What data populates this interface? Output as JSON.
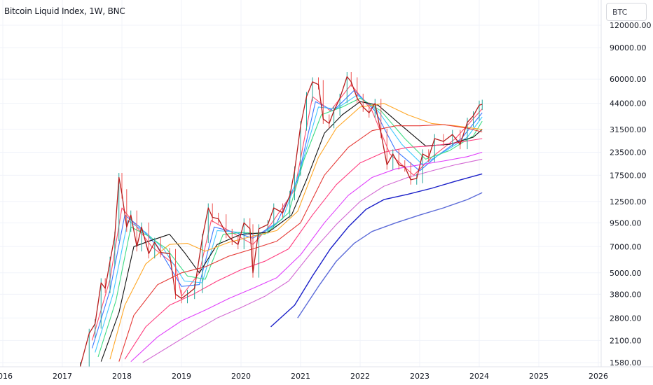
{
  "header": {
    "title": "Bitcoin Liquid Index, 1W, BNC"
  },
  "symbol_search": {
    "value": "BTC"
  },
  "chart_data": {
    "type": "line",
    "title": "Bitcoin Liquid Index, 1W, BNC",
    "y_scale": "log",
    "y_ticks": [
      {
        "label": "120000.00",
        "value": 120000
      },
      {
        "label": "90000.00",
        "value": 90000
      },
      {
        "label": "60000.00",
        "value": 60000
      },
      {
        "label": "44000.00",
        "value": 44000
      },
      {
        "label": "31500.00",
        "value": 31500
      },
      {
        "label": "23500.00",
        "value": 23500
      },
      {
        "label": "17500.00",
        "value": 17500
      },
      {
        "label": "12500.00",
        "value": 12500
      },
      {
        "label": "9500.00",
        "value": 9500
      },
      {
        "label": "7000.00",
        "value": 7000
      },
      {
        "label": "5000.00",
        "value": 5000
      },
      {
        "label": "3800.00",
        "value": 3800
      },
      {
        "label": "2800.00",
        "value": 2800
      },
      {
        "label": "2100.00",
        "value": 2100
      },
      {
        "label": "1580.00",
        "value": 1580
      }
    ],
    "x_ticks": [
      {
        "label": "2016",
        "value": 2016
      },
      {
        "label": "2017",
        "value": 2017
      },
      {
        "label": "2018",
        "value": 2018
      },
      {
        "label": "2019",
        "value": 2019
      },
      {
        "label": "2020",
        "value": 2020
      },
      {
        "label": "2021",
        "value": 2021
      },
      {
        "label": "2022",
        "value": 2022
      },
      {
        "label": "2023",
        "value": 2023
      },
      {
        "label": "2024",
        "value": 2024
      },
      {
        "label": "2025",
        "value": 2025
      },
      {
        "label": "2026",
        "value": 2026
      }
    ],
    "price": [
      [
        2017.3,
        1500
      ],
      [
        2017.45,
        2300
      ],
      [
        2017.55,
        2600
      ],
      [
        2017.65,
        4400
      ],
      [
        2017.72,
        4100
      ],
      [
        2017.8,
        5800
      ],
      [
        2017.88,
        8000
      ],
      [
        2017.95,
        17000
      ],
      [
        2018.0,
        13800
      ],
      [
        2018.08,
        9000
      ],
      [
        2018.15,
        10500
      ],
      [
        2018.25,
        7000
      ],
      [
        2018.33,
        9000
      ],
      [
        2018.45,
        6400
      ],
      [
        2018.55,
        7400
      ],
      [
        2018.65,
        6500
      ],
      [
        2018.8,
        6400
      ],
      [
        2018.9,
        3800
      ],
      [
        2019.0,
        3600
      ],
      [
        2019.1,
        3800
      ],
      [
        2019.22,
        4100
      ],
      [
        2019.35,
        7800
      ],
      [
        2019.45,
        11500
      ],
      [
        2019.52,
        10200
      ],
      [
        2019.62,
        10000
      ],
      [
        2019.75,
        8300
      ],
      [
        2019.85,
        7600
      ],
      [
        2019.95,
        7200
      ],
      [
        2020.05,
        9500
      ],
      [
        2020.15,
        8800
      ],
      [
        2020.2,
        5000
      ],
      [
        2020.3,
        8800
      ],
      [
        2020.45,
        9300
      ],
      [
        2020.55,
        11500
      ],
      [
        2020.7,
        10800
      ],
      [
        2020.82,
        13500
      ],
      [
        2020.9,
        18500
      ],
      [
        2021.0,
        33000
      ],
      [
        2021.1,
        48000
      ],
      [
        2021.2,
        58000
      ],
      [
        2021.3,
        56000
      ],
      [
        2021.38,
        36000
      ],
      [
        2021.48,
        34000
      ],
      [
        2021.56,
        40000
      ],
      [
        2021.66,
        47000
      ],
      [
        2021.78,
        62000
      ],
      [
        2021.85,
        58000
      ],
      [
        2021.95,
        47000
      ],
      [
        2022.05,
        42000
      ],
      [
        2022.15,
        39000
      ],
      [
        2022.25,
        44000
      ],
      [
        2022.35,
        30000
      ],
      [
        2022.45,
        20000
      ],
      [
        2022.55,
        23000
      ],
      [
        2022.65,
        20000
      ],
      [
        2022.75,
        19500
      ],
      [
        2022.85,
        16500
      ],
      [
        2022.95,
        16800
      ],
      [
        2023.05,
        23000
      ],
      [
        2023.15,
        22000
      ],
      [
        2023.25,
        28000
      ],
      [
        2023.4,
        27000
      ],
      [
        2023.55,
        29500
      ],
      [
        2023.68,
        26000
      ],
      [
        2023.8,
        34500
      ],
      [
        2023.9,
        37500
      ],
      [
        2024.0,
        43000
      ],
      [
        2024.05,
        43500
      ]
    ],
    "moving_averages": [
      {
        "color": "#ff4d6d",
        "values": [
          [
            2017.5,
            2100
          ],
          [
            2017.8,
            4600
          ],
          [
            2018.0,
            11500
          ],
          [
            2018.2,
            9500
          ],
          [
            2018.5,
            7000
          ],
          [
            2018.9,
            5500
          ],
          [
            2019.0,
            3700
          ],
          [
            2019.3,
            5000
          ],
          [
            2019.5,
            9800
          ],
          [
            2019.9,
            8200
          ],
          [
            2020.2,
            7200
          ],
          [
            2020.5,
            9300
          ],
          [
            2020.9,
            14500
          ],
          [
            2021.2,
            48000
          ],
          [
            2021.5,
            40000
          ],
          [
            2021.85,
            56000
          ],
          [
            2022.2,
            40000
          ],
          [
            2022.5,
            23000
          ],
          [
            2022.9,
            17500
          ],
          [
            2023.2,
            22000
          ],
          [
            2023.6,
            28000
          ],
          [
            2024.05,
            41000
          ]
        ]
      },
      {
        "color": "#3c78ff",
        "values": [
          [
            2017.5,
            1900
          ],
          [
            2017.8,
            4000
          ],
          [
            2018.05,
            10500
          ],
          [
            2018.3,
            9000
          ],
          [
            2018.6,
            7000
          ],
          [
            2019.0,
            4200
          ],
          [
            2019.3,
            4300
          ],
          [
            2019.55,
            9000
          ],
          [
            2019.9,
            8400
          ],
          [
            2020.2,
            7800
          ],
          [
            2020.6,
            9500
          ],
          [
            2020.95,
            16500
          ],
          [
            2021.25,
            45000
          ],
          [
            2021.55,
            40000
          ],
          [
            2021.9,
            52000
          ],
          [
            2022.25,
            40000
          ],
          [
            2022.6,
            24000
          ],
          [
            2023.0,
            18500
          ],
          [
            2023.3,
            22500
          ],
          [
            2023.7,
            28000
          ],
          [
            2024.05,
            39000
          ]
        ]
      },
      {
        "color": "#40c8ff",
        "values": [
          [
            2017.55,
            1800
          ],
          [
            2017.85,
            3800
          ],
          [
            2018.1,
            9800
          ],
          [
            2018.4,
            8400
          ],
          [
            2018.7,
            6800
          ],
          [
            2019.05,
            4500
          ],
          [
            2019.35,
            4400
          ],
          [
            2019.6,
            8600
          ],
          [
            2020.0,
            8400
          ],
          [
            2020.3,
            8000
          ],
          [
            2020.7,
            10000
          ],
          [
            2021.0,
            19000
          ],
          [
            2021.3,
            42000
          ],
          [
            2021.6,
            41000
          ],
          [
            2021.95,
            49000
          ],
          [
            2022.3,
            40000
          ],
          [
            2022.7,
            26000
          ],
          [
            2023.05,
            20000
          ],
          [
            2023.4,
            23500
          ],
          [
            2023.8,
            28500
          ],
          [
            2024.05,
            37000
          ]
        ]
      },
      {
        "color": "#3ddc84",
        "values": [
          [
            2017.6,
            1700
          ],
          [
            2017.9,
            3500
          ],
          [
            2018.15,
            9000
          ],
          [
            2018.45,
            8000
          ],
          [
            2018.75,
            6800
          ],
          [
            2019.1,
            4800
          ],
          [
            2019.4,
            4600
          ],
          [
            2019.7,
            8200
          ],
          [
            2020.05,
            8400
          ],
          [
            2020.4,
            8200
          ],
          [
            2020.8,
            10800
          ],
          [
            2021.05,
            21000
          ],
          [
            2021.35,
            38000
          ],
          [
            2021.7,
            42000
          ],
          [
            2022.0,
            47000
          ],
          [
            2022.35,
            40000
          ],
          [
            2022.75,
            28000
          ],
          [
            2023.1,
            21500
          ],
          [
            2023.5,
            24000
          ],
          [
            2023.9,
            29000
          ],
          [
            2024.05,
            35000
          ]
        ]
      },
      {
        "color": "#111111",
        "values": [
          [
            2017.65,
            1600
          ],
          [
            2017.95,
            3000
          ],
          [
            2018.2,
            7000
          ],
          [
            2018.5,
            7600
          ],
          [
            2018.8,
            8200
          ],
          [
            2019.05,
            6500
          ],
          [
            2019.3,
            5000
          ],
          [
            2019.6,
            7200
          ],
          [
            2020.0,
            8200
          ],
          [
            2020.45,
            8400
          ],
          [
            2020.85,
            10500
          ],
          [
            2021.1,
            16500
          ],
          [
            2021.4,
            30000
          ],
          [
            2021.7,
            38000
          ],
          [
            2022.0,
            45000
          ],
          [
            2022.3,
            43000
          ],
          [
            2022.7,
            33000
          ],
          [
            2023.1,
            25500
          ],
          [
            2023.5,
            26000
          ],
          [
            2023.9,
            28500
          ],
          [
            2024.05,
            31500
          ]
        ]
      },
      {
        "color": "#ffa726",
        "values": [
          [
            2017.8,
            1650
          ],
          [
            2018.05,
            3300
          ],
          [
            2018.4,
            5600
          ],
          [
            2018.8,
            7200
          ],
          [
            2019.1,
            7300
          ],
          [
            2019.4,
            6600
          ],
          [
            2019.8,
            7400
          ],
          [
            2020.2,
            8000
          ],
          [
            2020.6,
            8600
          ],
          [
            2020.95,
            11000
          ],
          [
            2021.3,
            22000
          ],
          [
            2021.6,
            32000
          ],
          [
            2022.0,
            42000
          ],
          [
            2022.4,
            44000
          ],
          [
            2022.8,
            38000
          ],
          [
            2023.2,
            34000
          ],
          [
            2023.6,
            33000
          ],
          [
            2024.05,
            31500
          ]
        ]
      },
      {
        "color": "#e53935",
        "values": [
          [
            2017.95,
            1600
          ],
          [
            2018.2,
            2900
          ],
          [
            2018.6,
            4300
          ],
          [
            2019.0,
            5000
          ],
          [
            2019.4,
            5400
          ],
          [
            2019.8,
            6200
          ],
          [
            2020.2,
            6800
          ],
          [
            2020.6,
            7500
          ],
          [
            2021.0,
            9500
          ],
          [
            2021.4,
            17500
          ],
          [
            2021.8,
            25000
          ],
          [
            2022.2,
            31000
          ],
          [
            2022.6,
            33000
          ],
          [
            2023.0,
            33000
          ],
          [
            2023.4,
            33500
          ],
          [
            2023.8,
            32000
          ],
          [
            2024.05,
            30500
          ]
        ]
      },
      {
        "color": "#ff3d7f",
        "values": [
          [
            2018.05,
            1650
          ],
          [
            2018.4,
            2500
          ],
          [
            2018.8,
            3300
          ],
          [
            2019.2,
            3800
          ],
          [
            2019.6,
            4500
          ],
          [
            2020.0,
            5200
          ],
          [
            2020.4,
            5800
          ],
          [
            2020.8,
            6800
          ],
          [
            2021.2,
            10500
          ],
          [
            2021.6,
            15500
          ],
          [
            2022.0,
            20500
          ],
          [
            2022.4,
            23500
          ],
          [
            2022.8,
            25000
          ],
          [
            2023.2,
            25500
          ],
          [
            2023.6,
            26500
          ],
          [
            2024.05,
            28000
          ]
        ]
      },
      {
        "color": "#e040fb",
        "values": [
          [
            2018.15,
            1600
          ],
          [
            2018.6,
            2200
          ],
          [
            2019.0,
            2700
          ],
          [
            2019.4,
            3100
          ],
          [
            2019.8,
            3600
          ],
          [
            2020.2,
            4100
          ],
          [
            2020.6,
            4700
          ],
          [
            2021.0,
            6300
          ],
          [
            2021.4,
            9500
          ],
          [
            2021.8,
            13500
          ],
          [
            2022.2,
            17000
          ],
          [
            2022.6,
            19000
          ],
          [
            2023.0,
            20000
          ],
          [
            2023.4,
            21000
          ],
          [
            2023.8,
            22200
          ],
          [
            2024.05,
            23500
          ]
        ]
      },
      {
        "color": "#d36ad3",
        "values": [
          [
            2018.35,
            1580
          ],
          [
            2018.8,
            1950
          ],
          [
            2019.2,
            2350
          ],
          [
            2019.6,
            2800
          ],
          [
            2020.0,
            3200
          ],
          [
            2020.4,
            3700
          ],
          [
            2020.8,
            4500
          ],
          [
            2021.2,
            6600
          ],
          [
            2021.6,
            9300
          ],
          [
            2022.0,
            12500
          ],
          [
            2022.4,
            15200
          ],
          [
            2022.8,
            17000
          ],
          [
            2023.2,
            18500
          ],
          [
            2023.6,
            20000
          ],
          [
            2024.05,
            21500
          ]
        ]
      },
      {
        "color": "#1a1fc8",
        "values": [
          [
            2020.5,
            2500
          ],
          [
            2020.9,
            3300
          ],
          [
            2021.2,
            4800
          ],
          [
            2021.5,
            6800
          ],
          [
            2021.8,
            9000
          ],
          [
            2022.1,
            11300
          ],
          [
            2022.4,
            12800
          ],
          [
            2022.8,
            13700
          ],
          [
            2023.2,
            14800
          ],
          [
            2023.6,
            16200
          ],
          [
            2024.05,
            17800
          ]
        ]
      },
      {
        "color": "#5c6bd8",
        "values": [
          [
            2020.95,
            2800
          ],
          [
            2021.3,
            4200
          ],
          [
            2021.6,
            5800
          ],
          [
            2021.9,
            7300
          ],
          [
            2022.2,
            8500
          ],
          [
            2022.6,
            9500
          ],
          [
            2023.0,
            10500
          ],
          [
            2023.4,
            11500
          ],
          [
            2023.8,
            12800
          ],
          [
            2024.05,
            14000
          ]
        ]
      }
    ]
  }
}
